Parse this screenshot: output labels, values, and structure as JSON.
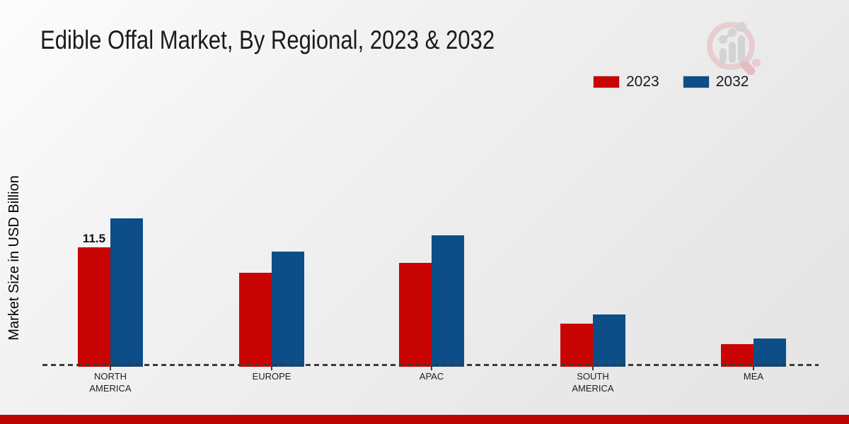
{
  "header": {
    "title": "Edible Offal Market, By Regional, 2023 & 2032"
  },
  "axis": {
    "ylabel": "Market Size in USD Billion"
  },
  "legend": {
    "items": [
      {
        "label": "2023",
        "color": "#c90504"
      },
      {
        "label": "2032",
        "color": "#0d4d88"
      }
    ]
  },
  "chart_data": {
    "type": "bar",
    "title": "Edible Offal Market, By Regional, 2023 & 2032",
    "categories": [
      "NORTH AMERICA",
      "EUROPE",
      "APAC",
      "SOUTH AMERICA",
      "MEA"
    ],
    "series": [
      {
        "name": "2023",
        "color": "#c90504",
        "values": [
          11.5,
          9.0,
          10.0,
          4.0,
          2.0
        ],
        "bar_labels": [
          "11.5",
          "",
          "",
          "",
          ""
        ]
      },
      {
        "name": "2032",
        "color": "#0d4d88",
        "values": [
          14.4,
          11.1,
          12.7,
          4.9,
          2.6
        ],
        "bar_labels": [
          "",
          "",
          "",
          "",
          ""
        ]
      }
    ],
    "xlabel": "",
    "ylabel": "Market Size in USD Billion",
    "ylim": [
      0,
      16
    ],
    "grid": false,
    "legend_position": "top-right",
    "baseline_style": "dashed",
    "value_labels_shown": [
      "NORTH AMERICA 2023 = 11.5"
    ]
  },
  "branding": {
    "logo_icon": "magnifier-bar-chart-logo",
    "accent_bar_color": "#bb0504",
    "logo_circle_color": "#e7ccd0",
    "logo_bar_color": "#d3d3d5"
  }
}
